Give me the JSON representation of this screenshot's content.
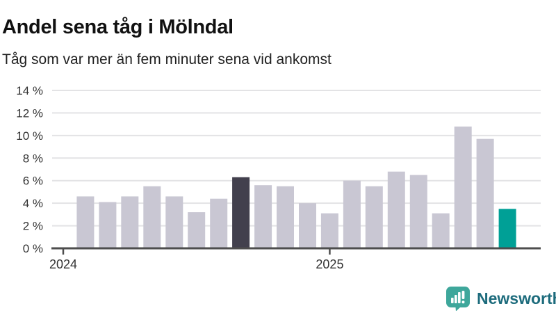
{
  "header": {
    "title": "Andel sena tåg i Mölndal",
    "subtitle": "Tåg som var mer än fem minuter sena vid ankomst"
  },
  "chart_data": {
    "type": "bar",
    "title": "Andel sena tåg i Mölndal",
    "subtitle": "Tåg som var mer än fem minuter sena vid ankomst",
    "unit": "percent of late trains (>5 min at arrival)",
    "values": [
      4.6,
      4.1,
      4.6,
      5.5,
      4.6,
      3.2,
      4.4,
      6.3,
      5.6,
      5.5,
      4.0,
      3.1,
      6.0,
      5.5,
      6.8,
      6.5,
      3.1,
      10.8,
      9.7,
      3.5
    ],
    "highlight_index": 7,
    "latest_index": 19,
    "ylim": [
      0,
      14
    ],
    "y_ticks": [
      {
        "value": 0,
        "label": "0 %"
      },
      {
        "value": 2,
        "label": "2 %"
      },
      {
        "value": 4,
        "label": "4 %"
      },
      {
        "value": 6,
        "label": "6 %"
      },
      {
        "value": 8,
        "label": "8 %"
      },
      {
        "value": 10,
        "label": "10 %"
      },
      {
        "value": 12,
        "label": "12 %"
      },
      {
        "value": 14,
        "label": "14 %"
      }
    ],
    "x_ticks": [
      {
        "label": "2024",
        "slot": 0
      },
      {
        "label": "2025",
        "slot": 12
      }
    ],
    "slots": 22,
    "lead_empty_slots": 1,
    "grid": true,
    "legend": "none",
    "colors": {
      "bar": "#c9c7d3",
      "highlight_bar": "#42404d",
      "latest_bar": "#00a096",
      "grid": "#e3e3e5",
      "axis": "#4d4d4d",
      "tick_text": "#333333"
    }
  },
  "branding": {
    "name": "Newsworthy",
    "icon": "newsworthy-chart-bubble-icon",
    "icon_color": "#3ea79b",
    "text_color": "#1c6b7c"
  }
}
